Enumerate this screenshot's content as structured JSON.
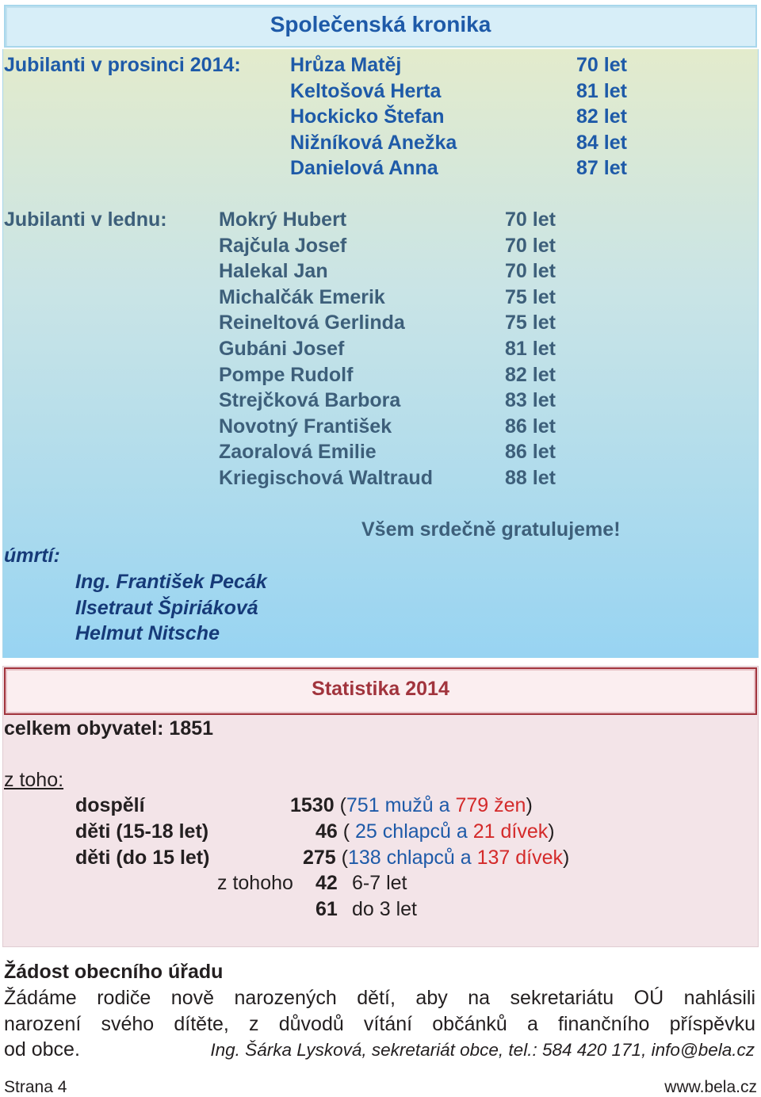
{
  "chronicle": {
    "title": "Společenská kronika",
    "december": {
      "label": "Jubilanti v prosinci 2014:",
      "rows": [
        {
          "name": "Hrůza Matěj",
          "age": "70 let"
        },
        {
          "name": "Keltošová Herta",
          "age": "81 let"
        },
        {
          "name": "Hockicko Štefan",
          "age": "82 let"
        },
        {
          "name": "Nižníková Anežka",
          "age": "84 let"
        },
        {
          "name": "Danielová Anna",
          "age": "87 let"
        }
      ]
    },
    "january": {
      "label": "Jubilanti v lednu:",
      "rows": [
        {
          "name": "Mokrý Hubert",
          "age": "70 let"
        },
        {
          "name": "Rajčula Josef",
          "age": "70 let"
        },
        {
          "name": "Halekal Jan",
          "age": "70 let"
        },
        {
          "name": "Michalčák Emerik",
          "age": "75 let"
        },
        {
          "name": "Reineltová Gerlinda",
          "age": "75 let"
        },
        {
          "name": "Gubáni Josef",
          "age": "81 let"
        },
        {
          "name": "Pompe Rudolf",
          "age": "82 let"
        },
        {
          "name": "Strejčková Barbora",
          "age": "83 let"
        },
        {
          "name": "Novotný František",
          "age": "86 let"
        },
        {
          "name": "Zaoralová Emilie",
          "age": "86 let"
        },
        {
          "name": "Kriegischová Waltraud",
          "age": "88 let"
        }
      ]
    },
    "congrats": "Všem srdečně gratulujeme!",
    "deaths": {
      "label": "úmrtí:",
      "names": [
        "Ing. František Pecák",
        "Ilsetraut Špiriáková",
        "Helmut Nitsche"
      ]
    }
  },
  "stats": {
    "title": "Statistika 2014",
    "total": "celkem obyvatel: 1851",
    "of_which": "z toho:",
    "adults": {
      "label": "dospělí",
      "count": "1530",
      "open": " (",
      "male": "751 mužů",
      "and": " a ",
      "female": "779 žen",
      "close": ")"
    },
    "kids15_18": {
      "label": "děti (15-18 let)",
      "count": "46",
      "open": " ( ",
      "male": "25 chlapců",
      "and": " a ",
      "female": "21 dívek",
      "close": ")"
    },
    "kids_to15": {
      "label": "děti (do 15 let)",
      "count": "275",
      "open": " (",
      "male": "138 chlapců",
      "and": " a ",
      "female": "137 dívek",
      "close": ")"
    },
    "sub": [
      {
        "prefix": "z tohoho",
        "count": "42",
        "desc": "6-7 let"
      },
      {
        "prefix": "",
        "count": "61",
        "desc": "do 3 let"
      }
    ]
  },
  "request": {
    "title": "Žádost obecního úřadu",
    "line1": "Žádáme rodiče nově narozených dětí, aby na sekretariátu OÚ nahlásili",
    "line2": "narození svého dítěte, z důvodů vítání občánků a finančního příspěvku",
    "line3": "od obce.",
    "signature": "Ing. Šárka Lysková, sekretariát obce, tel.: 584 420 171, info@bela.cz"
  },
  "footer": {
    "page": "Strana 4",
    "web": "www.bela.cz"
  },
  "colors": {
    "heading_blue": "#1e5aa8",
    "female_red": "#d42a2a",
    "stats_title": "#a1343d"
  }
}
